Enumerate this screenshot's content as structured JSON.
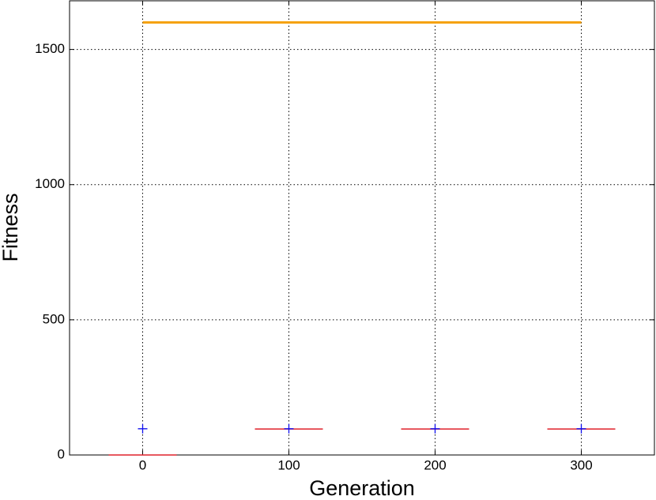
{
  "chart_data": {
    "type": "box",
    "x_label": "Generation",
    "y_label": "Fitness",
    "x": [
      0,
      100,
      200,
      300
    ],
    "xlim": [
      -50,
      350
    ],
    "xticks": [
      0,
      100,
      200,
      300
    ],
    "ylim": [
      0,
      1680
    ],
    "yticks": [
      0,
      500,
      1000,
      1500
    ],
    "grid": true,
    "series": [
      {
        "role": "line",
        "color": "#f5a00a",
        "values": [
          1600,
          1600,
          1600,
          1600
        ]
      },
      {
        "role": "median",
        "color": "#e0202a",
        "values": [
          0,
          96,
          96,
          96
        ]
      },
      {
        "role": "marker",
        "color": "#1010ee",
        "values": [
          97,
          97,
          97,
          97
        ]
      }
    ]
  }
}
